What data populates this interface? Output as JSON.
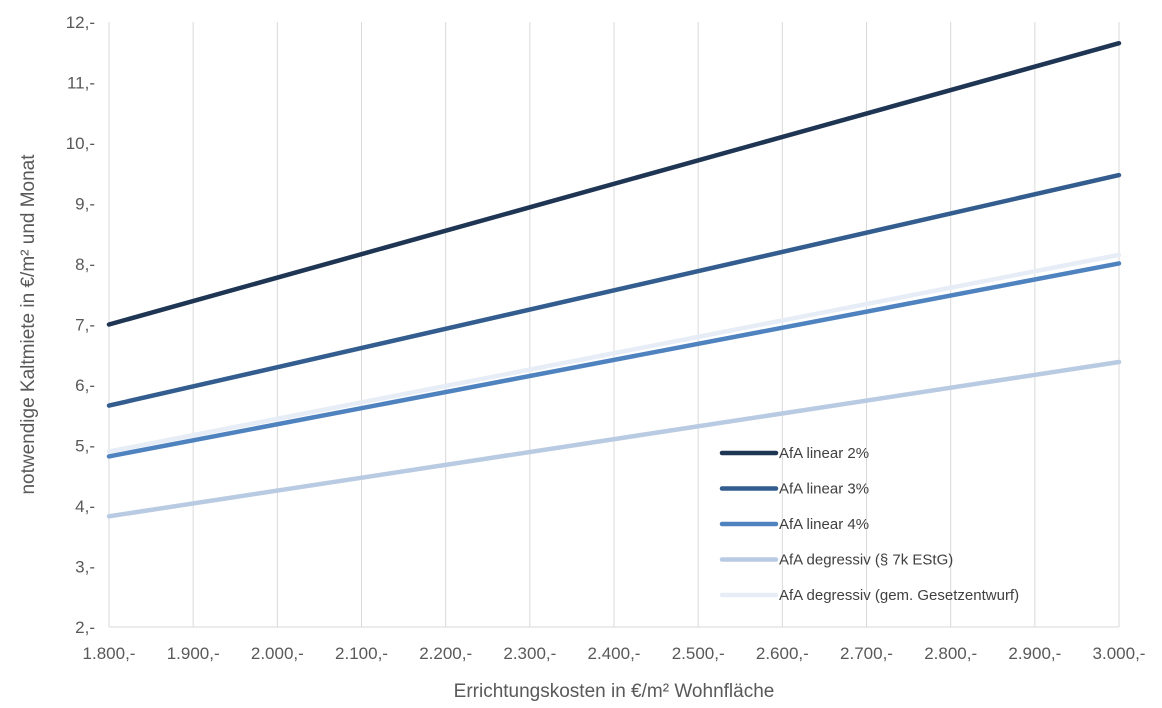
{
  "chart_data": {
    "type": "line",
    "title": "",
    "xlabel": "Errichtungskosten in €/m² Wohnfläche",
    "ylabel": "notwendige Kaltmiete in €/m² und Monat",
    "x_tick_labels": [
      "1.800,-",
      "1.900,-",
      "2.000,-",
      "2.100,-",
      "2.200,-",
      "2.300,-",
      "2.400,-",
      "2.500,-",
      "2.600,-",
      "2.700,-",
      "2.800,-",
      "2.900,-",
      "3.000,-"
    ],
    "y_tick_labels": [
      "2,-",
      "3,-",
      "4,-",
      "5,-",
      "6,-",
      "7,-",
      "8,-",
      "9,-",
      "10,-",
      "11,-",
      "12,-"
    ],
    "xlim": [
      1800,
      3000
    ],
    "ylim": [
      2,
      12
    ],
    "grid": "vertical",
    "legend_position": "bottom-right",
    "x": [
      1800,
      3000
    ],
    "series": [
      {
        "name": "AfA linear 2%",
        "color": "#1f3554",
        "values": [
          7.0,
          11.65
        ]
      },
      {
        "name": "AfA linear 3%",
        "color": "#335d8e",
        "values": [
          5.66,
          9.47
        ]
      },
      {
        "name": "AfA linear 4%",
        "color": "#4f83c0",
        "values": [
          4.82,
          8.01
        ]
      },
      {
        "name": "AfA degressiv (§ 7k EStG)",
        "color": "#b8cbe2",
        "values": [
          3.83,
          6.38
        ]
      },
      {
        "name": "AfA degressiv (gem. Gesetzentwurf)",
        "color": "#e6edf6",
        "values": [
          4.9,
          8.15
        ]
      }
    ]
  }
}
